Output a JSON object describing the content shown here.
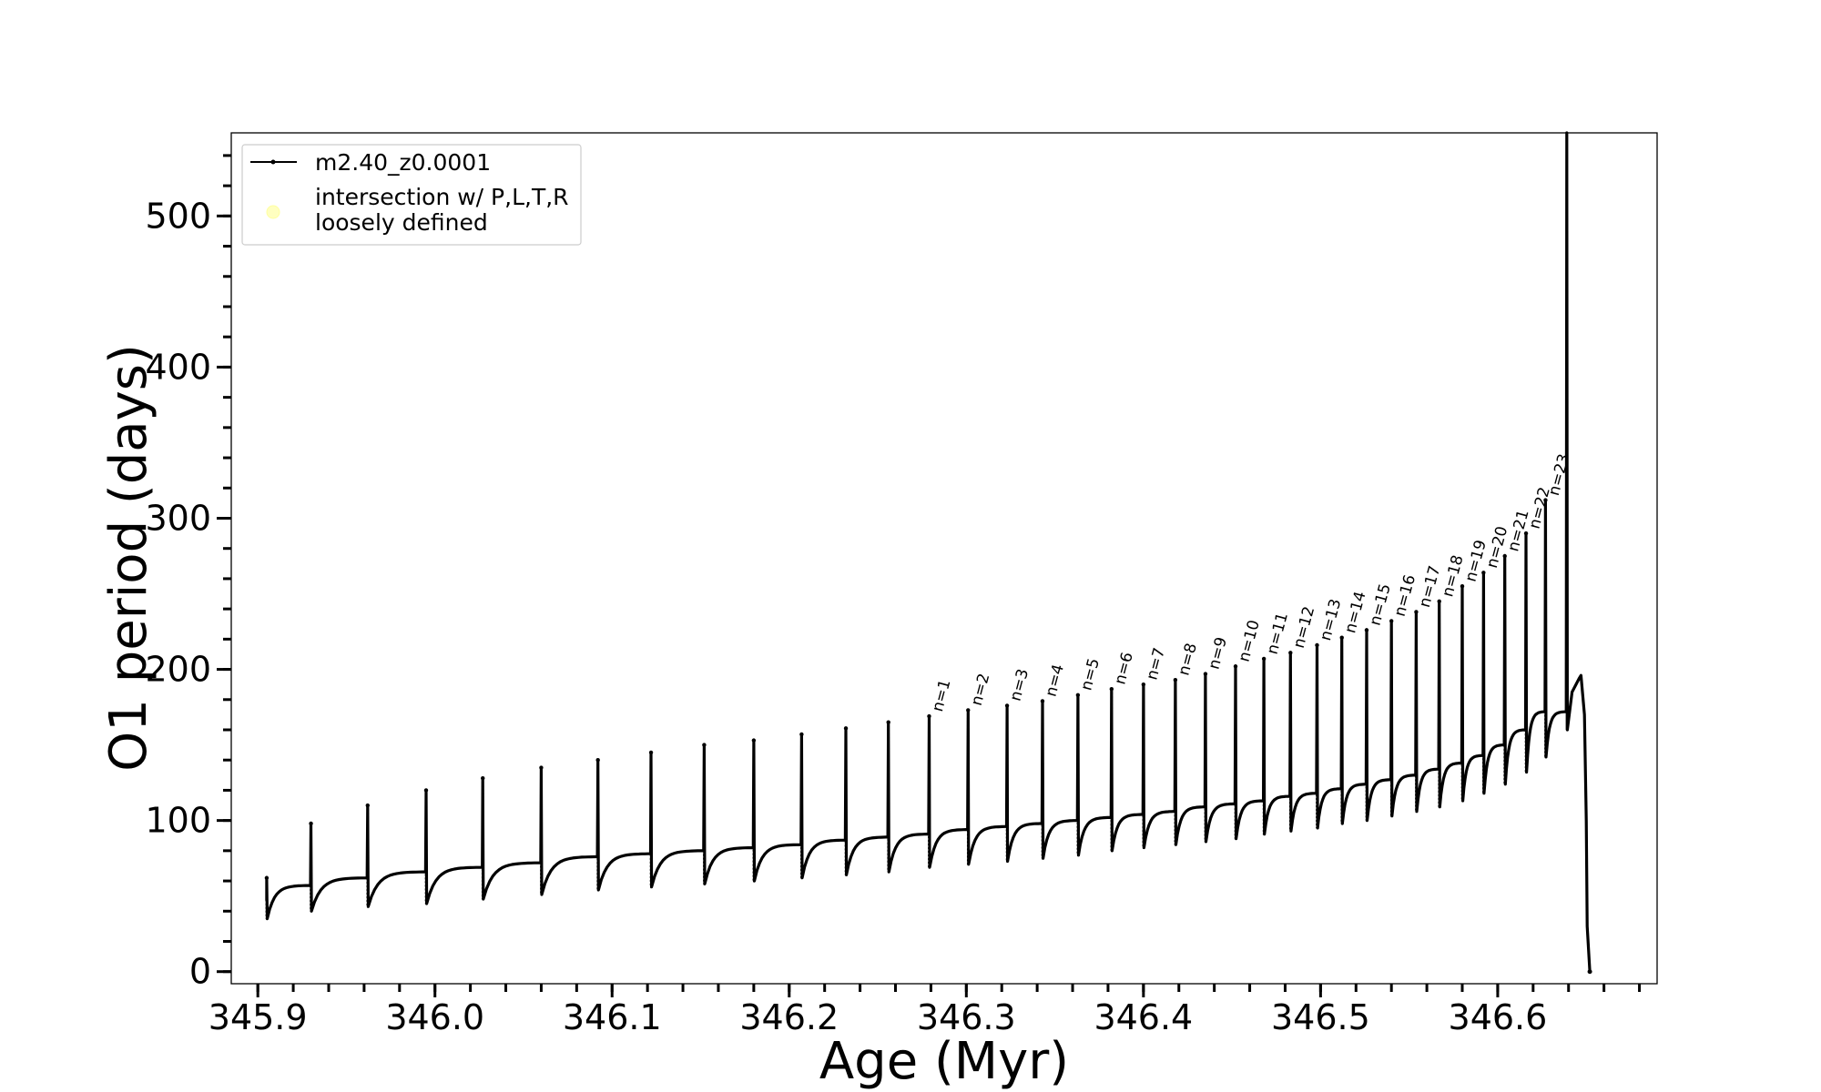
{
  "chart_data": {
    "type": "line",
    "title": "",
    "xlabel": "Age (Myr)",
    "ylabel": "O1 period (days)",
    "xlim": [
      345.885,
      346.69
    ],
    "ylim": [
      -8,
      555
    ],
    "x_ticks": [
      345.9,
      346.0,
      346.1,
      346.2,
      346.3,
      346.4,
      346.5,
      346.6
    ],
    "x_tick_labels": [
      "345.9",
      "346.0",
      "346.1",
      "346.2",
      "346.3",
      "346.4",
      "346.5",
      "346.6"
    ],
    "x_minor_step": 0.02,
    "y_ticks": [
      0,
      100,
      200,
      300,
      400,
      500
    ],
    "y_tick_labels": [
      "0",
      "100",
      "200",
      "300",
      "400",
      "500"
    ],
    "y_minor_step": 20,
    "grid": false,
    "legend_position": "top-left",
    "legend": [
      {
        "label": "m2.40_z0.0001",
        "marker": "line-dot",
        "color": "#000000"
      },
      {
        "label_lines": [
          "intersection w/ P,L,T,R",
          "loosely defined"
        ],
        "marker": "circle",
        "color": "#ffffc0"
      }
    ],
    "series": [
      {
        "name": "m2.40_z0.0001",
        "color": "#000000",
        "pulses": [
          {
            "age": 345.905,
            "peak": 62,
            "min": 35,
            "base": 47
          },
          {
            "age": 345.93,
            "peak": 98,
            "min": 40,
            "base": 57
          },
          {
            "age": 345.962,
            "peak": 110,
            "min": 43,
            "base": 62
          },
          {
            "age": 345.995,
            "peak": 120,
            "min": 45,
            "base": 66
          },
          {
            "age": 346.027,
            "peak": 128,
            "min": 48,
            "base": 69
          },
          {
            "age": 346.06,
            "peak": 135,
            "min": 51,
            "base": 72
          },
          {
            "age": 346.092,
            "peak": 140,
            "min": 54,
            "base": 76
          },
          {
            "age": 346.122,
            "peak": 145,
            "min": 56,
            "base": 78
          },
          {
            "age": 346.152,
            "peak": 150,
            "min": 58,
            "base": 80
          },
          {
            "age": 346.18,
            "peak": 153,
            "min": 60,
            "base": 82
          },
          {
            "age": 346.207,
            "peak": 157,
            "min": 62,
            "base": 84
          },
          {
            "age": 346.232,
            "peak": 161,
            "min": 64,
            "base": 87
          },
          {
            "age": 346.256,
            "peak": 165,
            "min": 66,
            "base": 89
          },
          {
            "age": 346.279,
            "peak": 169,
            "min": 69,
            "base": 91,
            "label": "n=1"
          },
          {
            "age": 346.301,
            "peak": 173,
            "min": 71,
            "base": 94,
            "label": "n=2"
          },
          {
            "age": 346.323,
            "peak": 176,
            "min": 73,
            "base": 96,
            "label": "n=3"
          },
          {
            "age": 346.343,
            "peak": 179,
            "min": 75,
            "base": 98,
            "label": "n=4"
          },
          {
            "age": 346.363,
            "peak": 183,
            "min": 77,
            "base": 100,
            "label": "n=5"
          },
          {
            "age": 346.382,
            "peak": 187,
            "min": 80,
            "base": 102,
            "label": "n=6"
          },
          {
            "age": 346.4,
            "peak": 190,
            "min": 82,
            "base": 104,
            "label": "n=7"
          },
          {
            "age": 346.418,
            "peak": 193,
            "min": 84,
            "base": 106,
            "label": "n=8"
          },
          {
            "age": 346.435,
            "peak": 197,
            "min": 86,
            "base": 109,
            "label": "n=9"
          },
          {
            "age": 346.452,
            "peak": 202,
            "min": 88,
            "base": 111,
            "label": "n=10"
          },
          {
            "age": 346.468,
            "peak": 207,
            "min": 91,
            "base": 113,
            "label": "n=11"
          },
          {
            "age": 346.483,
            "peak": 211,
            "min": 93,
            "base": 116,
            "label": "n=12"
          },
          {
            "age": 346.498,
            "peak": 216,
            "min": 95,
            "base": 118,
            "label": "n=13"
          },
          {
            "age": 346.512,
            "peak": 221,
            "min": 98,
            "base": 121,
            "label": "n=14"
          },
          {
            "age": 346.526,
            "peak": 226,
            "min": 100,
            "base": 124,
            "label": "n=15"
          },
          {
            "age": 346.54,
            "peak": 232,
            "min": 103,
            "base": 127,
            "label": "n=16"
          },
          {
            "age": 346.554,
            "peak": 238,
            "min": 106,
            "base": 130,
            "label": "n=17"
          },
          {
            "age": 346.567,
            "peak": 245,
            "min": 109,
            "base": 134,
            "label": "n=18"
          },
          {
            "age": 346.58,
            "peak": 255,
            "min": 113,
            "base": 138,
            "label": "n=19"
          },
          {
            "age": 346.592,
            "peak": 264,
            "min": 118,
            "base": 143,
            "label": "n=20"
          },
          {
            "age": 346.604,
            "peak": 275,
            "min": 124,
            "base": 150,
            "label": "n=21"
          },
          {
            "age": 346.616,
            "peak": 290,
            "min": 132,
            "base": 160,
            "label": "n=22"
          },
          {
            "age": 346.627,
            "peak": 312,
            "min": 142,
            "base": 172,
            "label": "n=23"
          }
        ],
        "final_spike": {
          "age": 346.639,
          "top": 555,
          "low": 160
        },
        "final_peak": {
          "age": 346.647,
          "value": 196
        },
        "end": {
          "age": 346.652,
          "value": 0
        }
      }
    ]
  }
}
